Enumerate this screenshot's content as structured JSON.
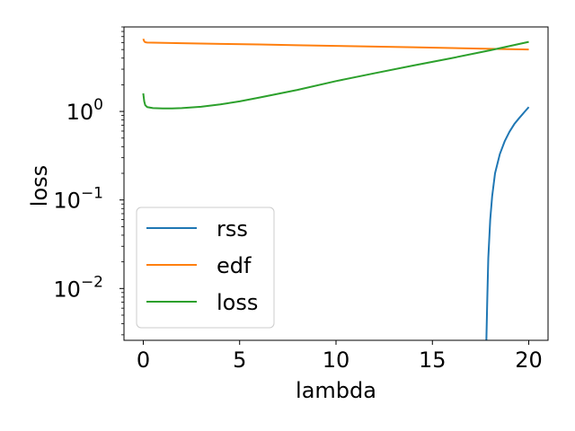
{
  "chart_data": {
    "type": "line",
    "title": "",
    "xlabel": "lambda",
    "ylabel": "loss",
    "yscale": "log",
    "xlim": [
      -1,
      21
    ],
    "ylim": [
      0.0026,
      9
    ],
    "x_ticks": [
      0,
      5,
      10,
      15,
      20
    ],
    "y_ticks": [
      {
        "value": 0.01,
        "base": "10",
        "exp": "−2"
      },
      {
        "value": 0.1,
        "base": "10",
        "exp": "−1"
      },
      {
        "value": 1,
        "base": "10",
        "exp": "0"
      }
    ],
    "grid": false,
    "legend_position": "lower-left",
    "series": [
      {
        "name": "rss",
        "color": "#1f77b4",
        "x": [
          17.8,
          17.85,
          17.9,
          18.0,
          18.1,
          18.25,
          18.5,
          18.75,
          19.0,
          19.25,
          19.5,
          19.75,
          20.0
        ],
        "y": [
          0.0026,
          0.008,
          0.022,
          0.06,
          0.11,
          0.2,
          0.33,
          0.46,
          0.59,
          0.72,
          0.84,
          0.97,
          1.12
        ]
      },
      {
        "name": "edf",
        "color": "#ff7f0e",
        "x": [
          0.0,
          0.05,
          0.1,
          0.2,
          2,
          4,
          6,
          8,
          10,
          12,
          14,
          16,
          18,
          20
        ],
        "y": [
          6.6,
          6.2,
          6.05,
          6.0,
          5.9,
          5.8,
          5.7,
          5.6,
          5.5,
          5.4,
          5.3,
          5.2,
          5.1,
          5.0
        ]
      },
      {
        "name": "loss",
        "color": "#2ca02c",
        "x": [
          0.0,
          0.05,
          0.1,
          0.2,
          0.5,
          1.0,
          1.5,
          2,
          3,
          4,
          5,
          6,
          8,
          10,
          12,
          14,
          16,
          18,
          20
        ],
        "y": [
          1.6,
          1.3,
          1.18,
          1.12,
          1.09,
          1.08,
          1.08,
          1.09,
          1.13,
          1.2,
          1.3,
          1.43,
          1.75,
          2.2,
          2.7,
          3.3,
          4.0,
          4.9,
          6.1
        ]
      }
    ]
  }
}
